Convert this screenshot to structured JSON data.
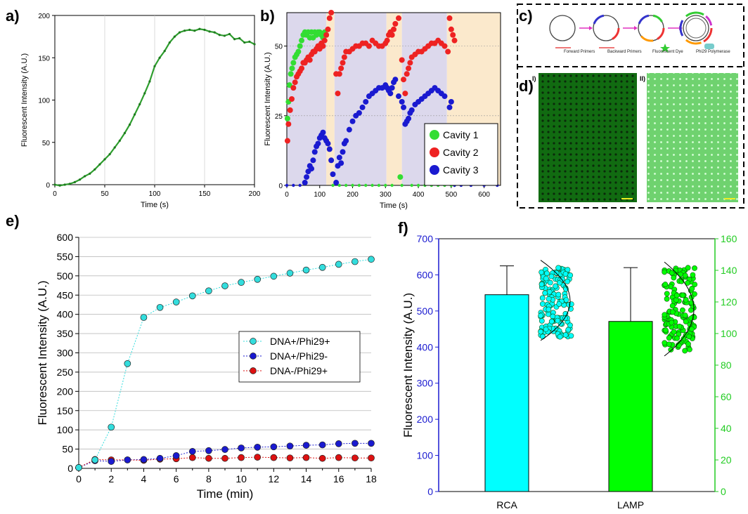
{
  "panels": {
    "a": "a)",
    "b": "b)",
    "c": "c)",
    "d": "d)",
    "e": "e)",
    "f": "f)",
    "d_sub1": "I)",
    "d_sub2": "II)"
  },
  "diagram": {
    "labels": [
      "Forward Primers",
      "Backward Primers",
      "Fluorescent Dye",
      "Phi29 Polymerase"
    ],
    "arrow_color": "#e030c0"
  },
  "chart_data": [
    {
      "id": "a",
      "type": "line",
      "xlabel": "Time (s)",
      "ylabel": "Fluorescent Intensity (A.U.)",
      "xlim": [
        0,
        200
      ],
      "ylim": [
        0,
        200
      ],
      "xticks": [
        0,
        50,
        100,
        150,
        200
      ],
      "yticks": [
        0,
        50,
        100,
        150,
        200
      ],
      "color": "#2e9e2e",
      "series": [
        {
          "x": [
            0,
            5,
            10,
            15,
            20,
            25,
            30,
            35,
            40,
            45,
            50,
            55,
            60,
            65,
            70,
            75,
            80,
            85,
            90,
            95,
            100,
            105,
            110,
            115,
            120,
            125,
            130,
            135,
            140,
            145,
            150,
            155,
            160,
            165,
            170,
            175,
            180,
            185,
            190,
            195,
            200
          ],
          "values": [
            0,
            -1,
            0,
            1,
            3,
            6,
            10,
            13,
            18,
            24,
            30,
            36,
            44,
            52,
            61,
            71,
            83,
            95,
            108,
            122,
            140,
            150,
            158,
            168,
            175,
            180,
            182,
            183,
            182,
            184,
            183,
            181,
            180,
            177,
            176,
            178,
            172,
            173,
            168,
            169,
            166
          ]
        }
      ]
    },
    {
      "id": "b",
      "type": "scatter",
      "xlabel": "Time (s)",
      "ylabel": "Fluorescent Intensity (A.U.)",
      "xlim": [
        0,
        650
      ],
      "ylim": [
        0,
        62
      ],
      "xticks": [
        0,
        100,
        200,
        300,
        400,
        500,
        600
      ],
      "yticks": [
        0,
        25,
        50
      ],
      "bands": [
        {
          "from": 0,
          "to": 120,
          "color": "#dcd8ec"
        },
        {
          "from": 120,
          "to": 145,
          "color": "#fbe9cc"
        },
        {
          "from": 145,
          "to": 303,
          "color": "#dcd8ec"
        },
        {
          "from": 303,
          "to": 350,
          "color": "#fbe9cc"
        },
        {
          "from": 350,
          "to": 487,
          "color": "#dcd8ec"
        },
        {
          "from": 487,
          "to": 650,
          "color": "#fbe9cc"
        }
      ],
      "legend_position": "bottom-right",
      "series": [
        {
          "name": "Cavity 1",
          "color": "#33dd33",
          "x": [
            2,
            5,
            8,
            12,
            16,
            20,
            25,
            30,
            35,
            40,
            45,
            50,
            55,
            60,
            65,
            70,
            75,
            80,
            85,
            90,
            95,
            100,
            105,
            110,
            115,
            120,
            140,
            160,
            180,
            200,
            220,
            240,
            260,
            280,
            300,
            320,
            345,
            350,
            380,
            400,
            420,
            440,
            460,
            480,
            500,
            510,
            545
          ],
          "values": [
            24,
            30,
            36,
            40,
            42,
            44,
            46,
            47,
            48,
            50,
            52,
            54,
            55,
            54,
            55,
            53,
            55,
            53,
            55,
            54,
            55,
            55,
            54,
            53,
            55,
            54,
            0,
            0,
            0,
            0,
            0,
            0,
            0,
            0,
            0,
            0,
            3,
            0,
            0,
            0,
            0,
            0,
            0,
            0,
            0,
            0,
            3
          ]
        },
        {
          "name": "Cavity 2",
          "color": "#ee2222",
          "x": [
            2,
            5,
            10,
            15,
            20,
            25,
            30,
            35,
            40,
            45,
            50,
            55,
            60,
            65,
            70,
            75,
            80,
            85,
            90,
            95,
            100,
            105,
            110,
            115,
            120,
            125,
            130,
            135,
            150,
            155,
            160,
            165,
            170,
            175,
            180,
            190,
            200,
            210,
            220,
            230,
            240,
            250,
            260,
            270,
            280,
            290,
            300,
            305,
            310,
            315,
            320,
            325,
            330,
            340,
            350,
            355,
            360,
            365,
            370,
            375,
            380,
            390,
            400,
            410,
            420,
            430,
            440,
            450,
            460,
            470,
            480,
            490,
            495,
            500,
            505,
            510
          ],
          "values": [
            16,
            22,
            27,
            31,
            35,
            37,
            39,
            40,
            41,
            42,
            44,
            44,
            45,
            46,
            45,
            47,
            48,
            48,
            49,
            50,
            49,
            51,
            50,
            52,
            54,
            56,
            60,
            62,
            40,
            33,
            40,
            42,
            44,
            46,
            48,
            48,
            49,
            50,
            50,
            51,
            51,
            50,
            52,
            51,
            50,
            50,
            51,
            52,
            54,
            55,
            54,
            56,
            58,
            60,
            45,
            38,
            33,
            40,
            42,
            44,
            46,
            47,
            48,
            48,
            49,
            50,
            51,
            51,
            52,
            51,
            50,
            48,
            60,
            56,
            54,
            52
          ]
        },
        {
          "name": "Cavity 3",
          "color": "#1a1ad0",
          "x": [
            0,
            20,
            40,
            55,
            60,
            65,
            70,
            75,
            80,
            85,
            90,
            95,
            100,
            105,
            110,
            115,
            120,
            125,
            130,
            135,
            140,
            150,
            155,
            160,
            165,
            170,
            175,
            180,
            190,
            200,
            210,
            220,
            230,
            240,
            250,
            260,
            270,
            280,
            290,
            300,
            305,
            310,
            315,
            320,
            325,
            330,
            340,
            350,
            355,
            360,
            365,
            370,
            375,
            380,
            390,
            400,
            410,
            420,
            430,
            440,
            450,
            460,
            470,
            480,
            490,
            495,
            500,
            510,
            530,
            560,
            600,
            640
          ],
          "values": [
            0,
            0,
            0,
            1,
            3,
            5,
            7,
            6,
            9,
            12,
            14,
            15,
            17,
            18,
            19,
            17,
            16,
            15,
            13,
            9,
            4,
            1,
            7,
            10,
            8,
            12,
            15,
            16,
            20,
            23,
            25,
            26,
            28,
            30,
            32,
            33,
            34,
            35,
            35,
            36,
            35,
            34,
            33,
            35,
            37,
            38,
            32,
            30,
            28,
            22,
            23,
            24,
            26,
            27,
            29,
            30,
            31,
            32,
            33,
            34,
            35,
            34,
            33,
            32,
            20,
            28,
            30,
            0,
            0,
            0,
            0,
            0
          ]
        }
      ]
    },
    {
      "id": "e",
      "type": "scatter",
      "xlabel": "Time (min)",
      "ylabel": "Fluorescent Intensity (A.U.)",
      "xlim": [
        0,
        18
      ],
      "ylim": [
        0,
        600
      ],
      "xticks": [
        0,
        2,
        4,
        6,
        8,
        10,
        12,
        14,
        16,
        18
      ],
      "yticks": [
        0,
        50,
        100,
        150,
        200,
        250,
        300,
        350,
        400,
        450,
        500,
        550,
        600
      ],
      "grid": true,
      "legend_position": "center-right",
      "series": [
        {
          "name": "DNA+/Phi29+",
          "color": "#33dddd",
          "x": [
            0,
            1,
            2,
            3,
            4,
            5,
            6,
            7,
            8,
            9,
            10,
            11,
            12,
            13,
            14,
            15,
            16,
            17,
            18
          ],
          "values": [
            2,
            22,
            107,
            272,
            392,
            418,
            432,
            448,
            461,
            474,
            483,
            491,
            499,
            507,
            515,
            522,
            530,
            537,
            543
          ]
        },
        {
          "name": "DNA+/Phi29-",
          "color": "#1a1ad0",
          "x": [
            0,
            1,
            2,
            3,
            4,
            5,
            6,
            7,
            8,
            9,
            10,
            11,
            12,
            13,
            14,
            15,
            16,
            17,
            18
          ],
          "values": [
            2,
            20,
            18,
            22,
            23,
            26,
            33,
            44,
            46,
            49,
            53,
            55,
            56,
            58,
            60,
            61,
            64,
            65,
            65
          ]
        },
        {
          "name": "DNA-/Phi29+",
          "color": "#dd1111",
          "x": [
            0,
            1,
            2,
            3,
            4,
            5,
            6,
            7,
            8,
            9,
            10,
            11,
            12,
            13,
            14,
            15,
            16,
            17,
            18
          ],
          "values": [
            2,
            23,
            22,
            22,
            21,
            24,
            25,
            28,
            26,
            26,
            28,
            29,
            28,
            27,
            28,
            26,
            28,
            27,
            27
          ]
        }
      ]
    },
    {
      "id": "f",
      "type": "bar",
      "categories": [
        "RCA",
        "LAMP"
      ],
      "ylabel": "Fluorescent Intensity (A.U.)",
      "ylim": [
        0,
        700
      ],
      "yticks": [
        0,
        100,
        200,
        300,
        400,
        500,
        600,
        700
      ],
      "y2lim": [
        0,
        160
      ],
      "y2ticks": [
        0,
        20,
        40,
        60,
        80,
        100,
        120,
        140,
        160
      ],
      "series": [
        {
          "name": "RCA",
          "color": "#00ffff",
          "value": 545,
          "error_upper": 625,
          "scatter_range": [
            428,
            625
          ]
        },
        {
          "name": "LAMP",
          "color": "#00ff00",
          "value": 471,
          "error_upper": 620,
          "scatter_range": [
            385,
            620
          ]
        }
      ]
    }
  ]
}
